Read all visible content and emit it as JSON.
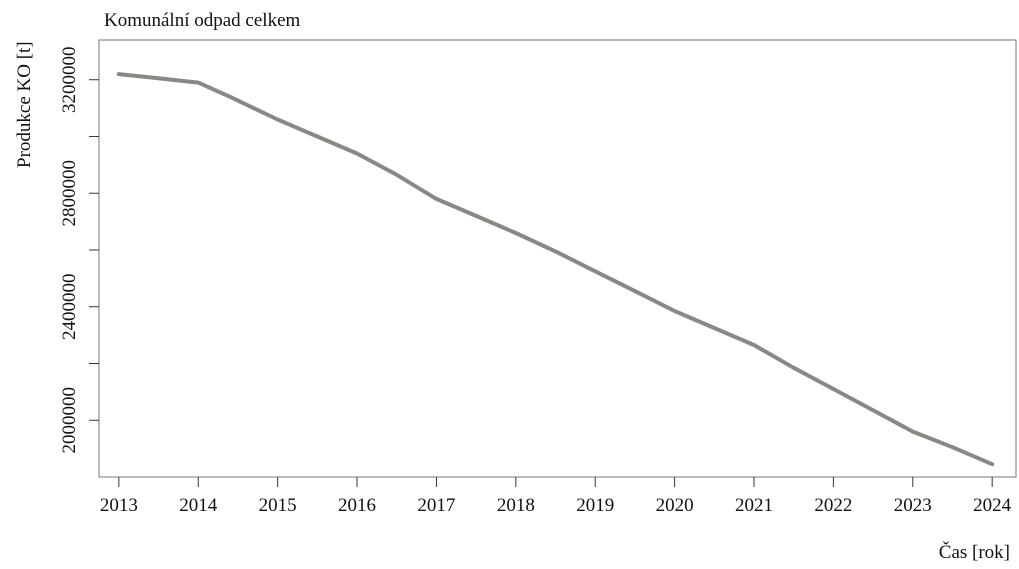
{
  "chart_data": {
    "type": "line",
    "title": "Komunální odpad celkem",
    "xlabel": "Čas [rok]",
    "ylabel": "Produkce KO [t]",
    "xlim": [
      2012.75,
      2024.3
    ],
    "ylim": [
      1800000,
      3340000
    ],
    "x_ticks": [
      "2013",
      "2014",
      "2015",
      "2016",
      "2017",
      "2018",
      "2019",
      "2020",
      "2021",
      "2022",
      "2023",
      "2024"
    ],
    "y_ticks": [
      "2000000",
      "2400000",
      "2800000",
      "3200000"
    ],
    "y_tick_values": [
      2000000,
      2400000,
      2800000,
      3200000
    ],
    "y_minor_tick_values": [
      2200000,
      2600000,
      3000000
    ],
    "grid": false,
    "legend": "none",
    "series": [
      {
        "color": "#8a8884",
        "x": [
          2013,
          2013.5,
          2014,
          2014.4,
          2015,
          2015.5,
          2016,
          2016.5,
          2017,
          2017.5,
          2018,
          2018.5,
          2019,
          2019.5,
          2020,
          2020.5,
          2021,
          2021.5,
          2022,
          2022.5,
          2023,
          2023.5,
          2024
        ],
        "values": [
          3220000,
          3205000,
          3190000,
          3140000,
          3060000,
          3000000,
          2940000,
          2865000,
          2780000,
          2720000,
          2660000,
          2595000,
          2525000,
          2455000,
          2385000,
          2325000,
          2265000,
          2185000,
          2110000,
          2035000,
          1960000,
          1905000,
          1845000
        ]
      }
    ]
  }
}
